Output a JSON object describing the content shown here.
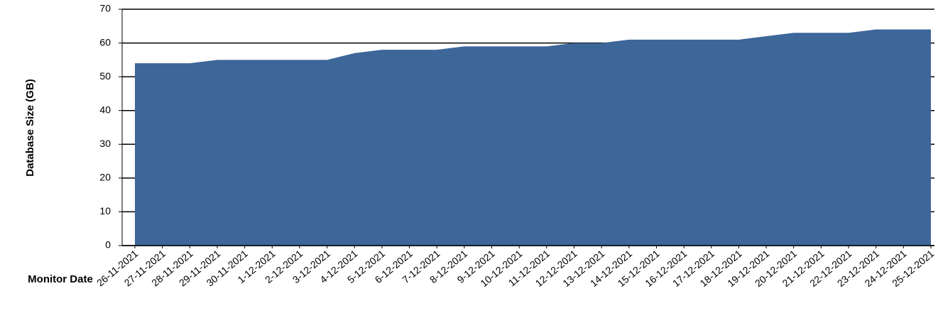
{
  "chart_data": {
    "type": "area",
    "y_label": "Database Size (GB)",
    "x_label": "Monitor Date",
    "categories": [
      "26-11-2021",
      "27-11-2021",
      "28-11-2021",
      "29-11-2021",
      "30-11-2021",
      "1-12-2021",
      "2-12-2021",
      "3-12-2021",
      "4-12-2021",
      "5-12-2021",
      "6-12-2021",
      "7-12-2021",
      "8-12-2021",
      "9-12-2021",
      "10-12-2021",
      "11-12-2021",
      "12-12-2021",
      "13-12-2021",
      "14-12-2021",
      "15-12-2021",
      "16-12-2021",
      "17-12-2021",
      "18-12-2021",
      "19-12-2021",
      "20-12-2021",
      "21-12-2021",
      "22-12-2021",
      "23-12-2021",
      "24-12-2021",
      "25-12-2021"
    ],
    "values": [
      54,
      54,
      54,
      55,
      55,
      55,
      55,
      55,
      57,
      58,
      58,
      58,
      59,
      59,
      59,
      59,
      60,
      60,
      61,
      61,
      61,
      61,
      61,
      62,
      63,
      63,
      63,
      64,
      64,
      64
    ],
    "color": "#3d6699",
    "ylim": [
      0,
      70
    ],
    "yticks": [
      0,
      10,
      20,
      30,
      40,
      50,
      60,
      70
    ],
    "grid": true
  }
}
